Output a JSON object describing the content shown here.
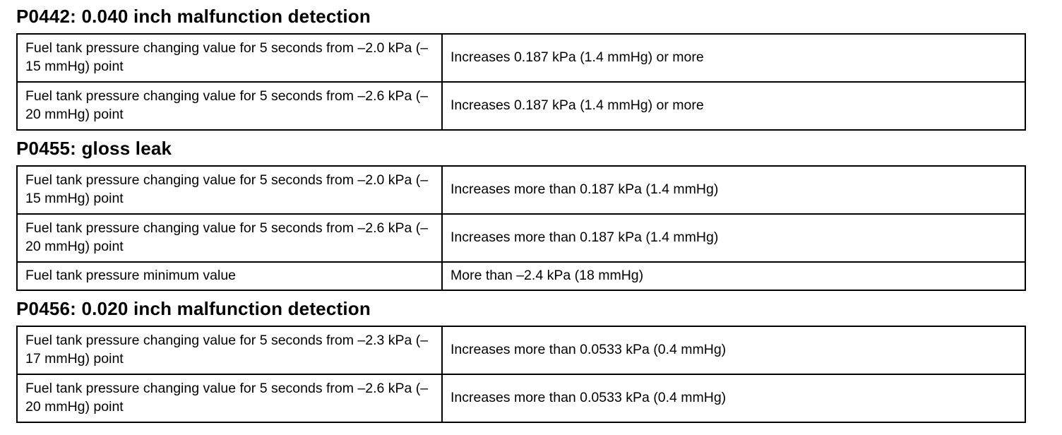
{
  "sections": [
    {
      "heading": "P0442: 0.040 inch malfunction detection",
      "rows": [
        {
          "condition": "Fuel tank pressure changing value for 5 seconds from –2.0 kPa (–15 mmHg) point",
          "value": "Increases 0.187 kPa (1.4 mmHg) or more"
        },
        {
          "condition": "Fuel tank pressure changing value for 5 seconds from –2.6 kPa (–20 mmHg) point",
          "value": "Increases 0.187 kPa (1.4 mmHg) or more"
        }
      ]
    },
    {
      "heading": "P0455: gloss leak",
      "rows": [
        {
          "condition": "Fuel tank pressure changing value for 5 seconds from –2.0 kPa (–15 mmHg) point",
          "value": "Increases more than 0.187 kPa (1.4 mmHg)"
        },
        {
          "condition": "Fuel tank pressure changing value for 5 seconds from –2.6 kPa (–20 mmHg) point",
          "value": "Increases more than 0.187 kPa (1.4 mmHg)"
        },
        {
          "condition": "Fuel tank pressure minimum value",
          "value": "More than –2.4 kPa (18 mmHg)"
        }
      ]
    },
    {
      "heading": "P0456: 0.020 inch malfunction detection",
      "rows": [
        {
          "condition": "Fuel tank pressure changing value for 5 seconds from –2.3 kPa (–17 mmHg) point",
          "value": "Increases more than 0.0533 kPa (0.4 mmHg)"
        },
        {
          "condition": "Fuel tank pressure changing value for 5 seconds from –2.6 kPa (–20 mmHg) point",
          "value": "Increases more than 0.0533 kPa (0.4 mmHg)"
        }
      ]
    }
  ]
}
